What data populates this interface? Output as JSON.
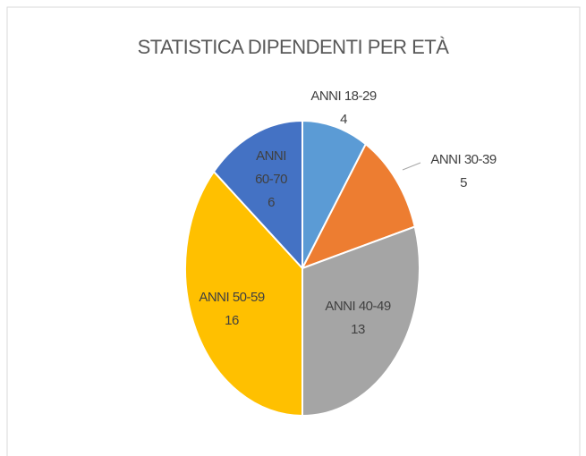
{
  "chart_data": {
    "type": "pie",
    "title": "STATISTICA DIPENDENTI PER ETÀ",
    "categories": [
      "ANNI 18-29",
      "ANNI 30-39",
      "ANNI 40-49",
      "ANNI 50-59",
      "ANNI 60-70"
    ],
    "values": [
      4,
      5,
      13,
      16,
      6
    ],
    "colors": [
      "#5b9bd5",
      "#ed7d31",
      "#a5a5a5",
      "#ffc000",
      "#4472c4"
    ]
  }
}
